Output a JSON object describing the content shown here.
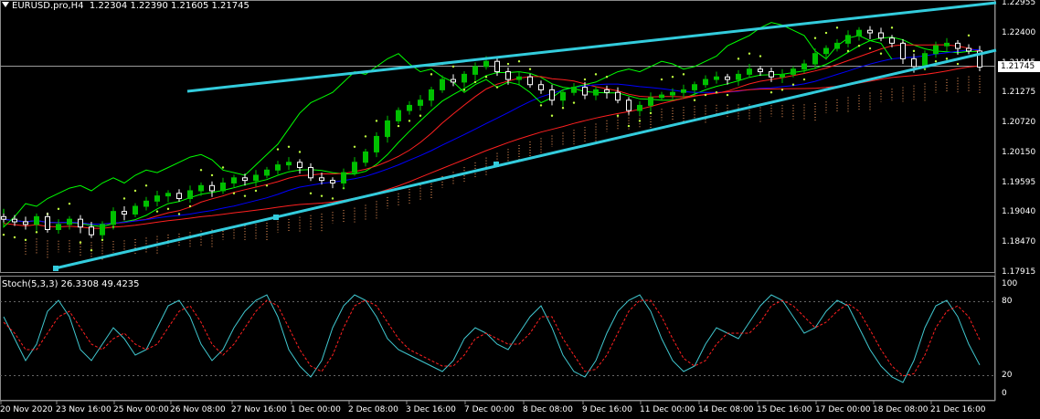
{
  "header": {
    "title": "EURUSD.pro,H4",
    "ohlc": "1.22304 1.22390 1.21605 1.21745"
  },
  "indicator": {
    "title": "Stoch(5,3,3) 26.3308 49.4235"
  },
  "price_axis": {
    "labels": [
      "1.22955",
      "1.22400",
      "1.21845",
      "1.21275",
      "1.20720",
      "1.20150",
      "1.19595",
      "1.19040",
      "1.18470",
      "1.17915"
    ],
    "current": "1.21745"
  },
  "stoch_axis": {
    "labels": [
      "100",
      "80",
      "20",
      "0"
    ]
  },
  "time_axis": {
    "labels": [
      "20 Nov 2020",
      "23 Nov 16:00",
      "25 Nov 00:00",
      "26 Nov 08:00",
      "27 Nov 16:00",
      "1 Dec 00:00",
      "2 Dec 08:00",
      "3 Dec 16:00",
      "7 Dec 00:00",
      "8 Dec 08:00",
      "9 Dec 16:00",
      "11 Dec 00:00",
      "14 Dec 08:00",
      "15 Dec 16:00",
      "17 Dec 00:00",
      "18 Dec 08:00",
      "21 Dec 16:00"
    ]
  },
  "colors": {
    "background": "#000000",
    "bull_candle": "#00c000",
    "bear_candle": "#ffffff",
    "trendline": "#33ccdd",
    "ma_blue": "#0000ff",
    "ma_red": "#ff2020",
    "ma_green": "#00ff00",
    "stoch_main": "#40c8d0",
    "stoch_signal": "#ff2020",
    "cloud": "#ffa060",
    "parabolic_sar": "#c0ff40"
  },
  "chart_data": {
    "type": "candlestick",
    "symbol": "EURUSD.pro",
    "timeframe": "H4",
    "ylim": [
      1.1778,
      1.23
    ],
    "close_series": [
      1.188,
      1.1875,
      1.187,
      1.1885,
      1.186,
      1.187,
      1.188,
      1.1865,
      1.185,
      1.187,
      1.1895,
      1.189,
      1.1905,
      1.1915,
      1.1925,
      1.193,
      1.192,
      1.1935,
      1.1945,
      1.1935,
      1.195,
      1.196,
      1.1955,
      1.1965,
      1.1975,
      1.1985,
      1.199,
      1.198,
      1.196,
      1.1955,
      1.195,
      1.197,
      1.199,
      1.201,
      1.204,
      1.207,
      1.209,
      1.21,
      1.211,
      1.213,
      1.215,
      1.2145,
      1.216,
      1.2175,
      1.2185,
      1.2165,
      1.215,
      1.2155,
      1.214,
      1.213,
      1.211,
      1.2125,
      1.2135,
      1.212,
      1.213,
      1.2125,
      1.211,
      1.209,
      1.21,
      1.2115,
      1.212,
      1.2125,
      1.213,
      1.214,
      1.215,
      1.2155,
      1.215,
      1.216,
      1.217,
      1.2165,
      1.2155,
      1.216,
      1.217,
      1.218,
      1.22,
      1.221,
      1.222,
      1.2235,
      1.2245,
      1.224,
      1.223,
      1.222,
      1.219,
      1.2175,
      1.22,
      1.2215,
      1.222,
      1.221,
      1.2205,
      1.2174
    ],
    "stoch_main": [
      70,
      50,
      30,
      45,
      75,
      85,
      70,
      40,
      30,
      45,
      60,
      50,
      35,
      40,
      60,
      80,
      85,
      70,
      45,
      30,
      40,
      60,
      75,
      85,
      90,
      70,
      40,
      25,
      15,
      30,
      60,
      80,
      90,
      85,
      70,
      50,
      40,
      35,
      30,
      25,
      20,
      30,
      50,
      60,
      55,
      45,
      40,
      55,
      70,
      80,
      60,
      35,
      20,
      15,
      30,
      55,
      75,
      85,
      90,
      75,
      50,
      30,
      20,
      25,
      45,
      60,
      55,
      50,
      65,
      80,
      90,
      85,
      70,
      55,
      60,
      75,
      85,
      80,
      60,
      40,
      25,
      15,
      10,
      30,
      60,
      80,
      85,
      70,
      45,
      26
    ],
    "stoch_signal": [
      65,
      55,
      40,
      40,
      55,
      70,
      75,
      60,
      45,
      40,
      50,
      55,
      45,
      40,
      45,
      60,
      75,
      80,
      65,
      45,
      35,
      45,
      60,
      75,
      85,
      80,
      60,
      40,
      25,
      20,
      35,
      60,
      80,
      85,
      80,
      65,
      50,
      40,
      35,
      30,
      25,
      25,
      35,
      50,
      55,
      50,
      45,
      45,
      55,
      70,
      70,
      50,
      35,
      20,
      22,
      35,
      55,
      75,
      85,
      85,
      70,
      50,
      32,
      25,
      30,
      45,
      55,
      55,
      55,
      65,
      80,
      85,
      80,
      70,
      60,
      65,
      75,
      82,
      75,
      58,
      40,
      25,
      16,
      18,
      35,
      60,
      75,
      80,
      70,
      49
    ],
    "stoch_levels": [
      80,
      20
    ]
  }
}
